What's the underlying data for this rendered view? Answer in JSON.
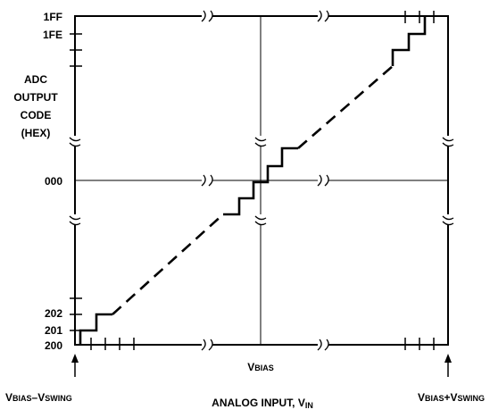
{
  "y_ticks": {
    "t1ff": "1FF",
    "t1fe": "1FE",
    "t000": "000",
    "t202": "202",
    "t201": "201",
    "t200": "200"
  },
  "y_axis_title": [
    "ADC",
    "OUTPUT",
    "CODE",
    "(HEX)"
  ],
  "x_mid_label": {
    "main": "V",
    "sub": "BIAS"
  },
  "x_left_label": {
    "v1": "V",
    "s1": "BIAS",
    "mid": "–V",
    "s2": "SWING"
  },
  "x_right_label": {
    "v1": "V",
    "s1": "BIAS",
    "mid": "+V",
    "s2": "SWING"
  },
  "x_axis_title": {
    "main": "ANALOG INPUT, V",
    "sub": "IN"
  }
}
